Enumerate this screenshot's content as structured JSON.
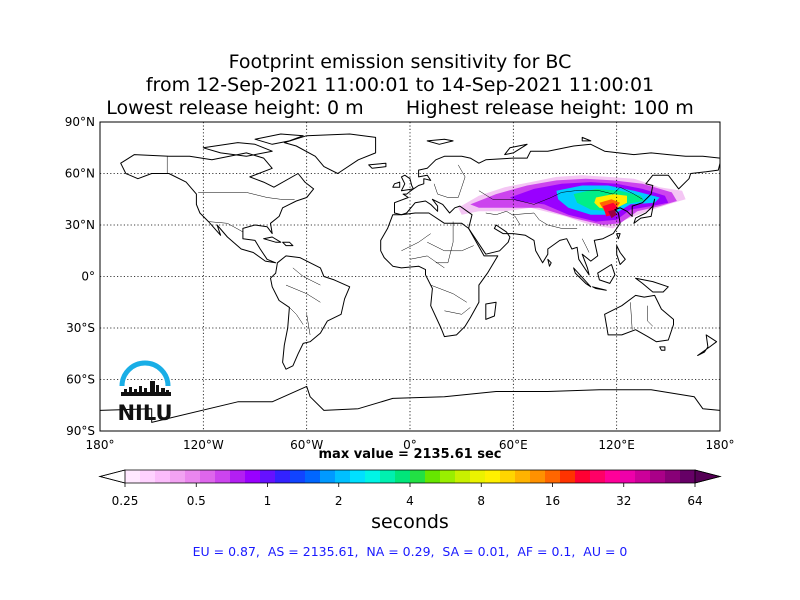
{
  "title": {
    "line1": "Footprint emission sensitivity for BC",
    "line2": "from 12-Sep-2021 11:00:01 to 14-Sep-2021 11:00:01",
    "line3": "Lowest release height: 0 m       Highest release height: 100 m"
  },
  "map": {
    "projection": "equirectangular",
    "lon_range": [
      -180,
      180
    ],
    "lat_range": [
      -90,
      90
    ],
    "lat_ticks": [
      {
        "value": 90,
        "label": "90°N"
      },
      {
        "value": 60,
        "label": "60°N"
      },
      {
        "value": 30,
        "label": "30°N"
      },
      {
        "value": 0,
        "label": "0°"
      },
      {
        "value": -30,
        "label": "30°S"
      },
      {
        "value": -60,
        "label": "60°S"
      },
      {
        "value": -90,
        "label": "90°S"
      }
    ],
    "lon_ticks": [
      {
        "value": -180,
        "label": "180°"
      },
      {
        "value": -120,
        "label": "120°W"
      },
      {
        "value": -60,
        "label": "60°W"
      },
      {
        "value": 0,
        "label": "0°"
      },
      {
        "value": 60,
        "label": "60°E"
      },
      {
        "value": 120,
        "label": "120°E"
      },
      {
        "value": 180,
        "label": "180°"
      }
    ],
    "grid": "dotted",
    "plume_colors": [
      "#f4c6f4",
      "#cc44ee",
      "#9900ff",
      "#1133ff",
      "#00ccff",
      "#00ee88",
      "#99ee00",
      "#ffee00",
      "#ff6600",
      "#ff0033",
      "#990044"
    ]
  },
  "logo": {
    "text": "NILU",
    "color": "#19aee6"
  },
  "max_value": "max value = 2135.61 sec",
  "colorbar": {
    "ticks": [
      {
        "value": 0.25,
        "label": "0.25"
      },
      {
        "value": 0.5,
        "label": "0.5"
      },
      {
        "value": 1,
        "label": "1"
      },
      {
        "value": 2,
        "label": "2"
      },
      {
        "value": 4,
        "label": "4"
      },
      {
        "value": 8,
        "label": "8"
      },
      {
        "value": 16,
        "label": "16"
      },
      {
        "value": 32,
        "label": "32"
      },
      {
        "value": 64,
        "label": "64"
      }
    ],
    "colors": [
      "#ffe8ff",
      "#ffd2ff",
      "#fbbcfb",
      "#f2a2f2",
      "#ea86ee",
      "#de66ec",
      "#cc44ee",
      "#b31ff2",
      "#9900ff",
      "#6611ff",
      "#3322ff",
      "#1144ff",
      "#0066ff",
      "#0099ff",
      "#00c0ff",
      "#00e0ff",
      "#00f5e6",
      "#00f0b0",
      "#00e67a",
      "#22e044",
      "#66e600",
      "#99ee00",
      "#c8f000",
      "#ebf200",
      "#fff000",
      "#ffd500",
      "#ffb300",
      "#ff9100",
      "#ff6600",
      "#ff3300",
      "#ff0033",
      "#ff0066",
      "#ff0099",
      "#ee00aa",
      "#cc0099",
      "#aa0088",
      "#880077",
      "#660066"
    ],
    "units": "seconds"
  },
  "region_summary": "EU = 0.87,  AS = 2135.61,  NA = 0.29,  SA = 0.01,  AF = 0.1,  AU = 0"
}
